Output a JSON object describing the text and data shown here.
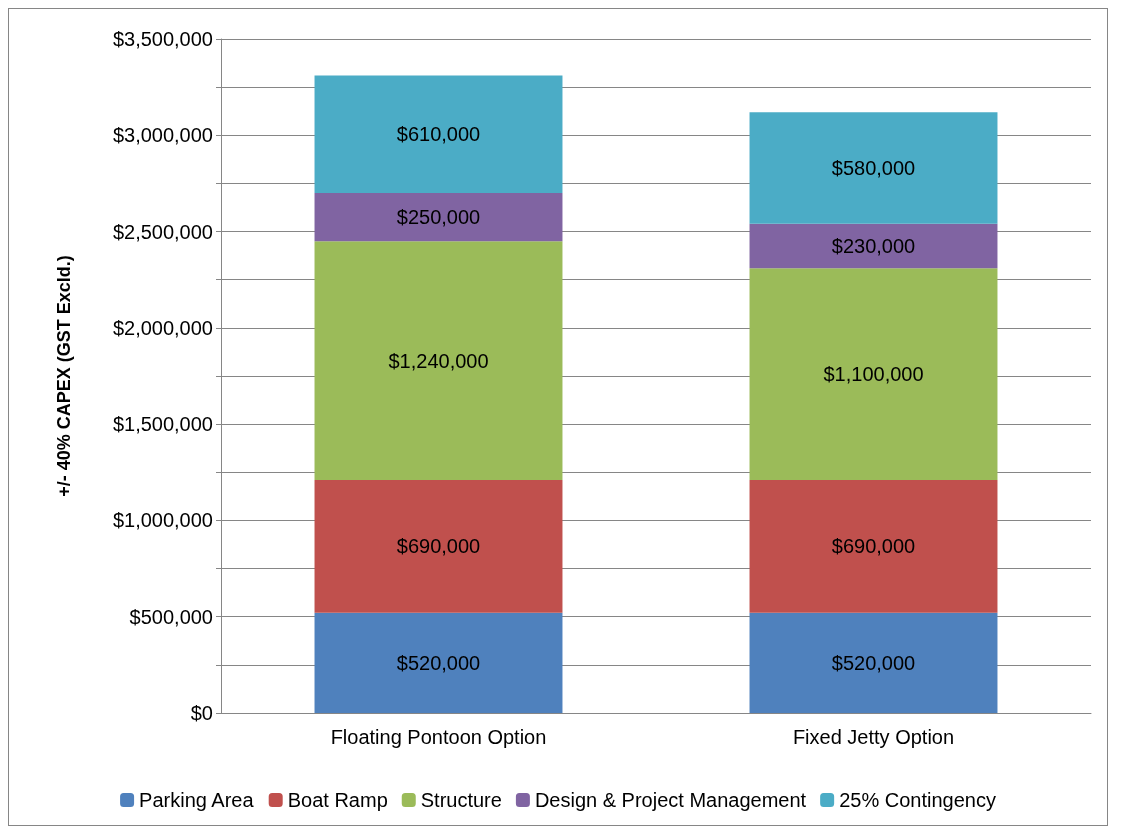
{
  "chart_data": {
    "type": "bar",
    "stacked": true,
    "ylabel": "+/- 40% CAPEX (GST Excld.)",
    "categories": [
      "Floating Pontoon Option",
      "Fixed Jetty Option"
    ],
    "series": [
      {
        "name": "Parking Area",
        "color": "#4f81bd",
        "values": [
          520000,
          520000
        ],
        "value_labels": [
          "$520,000",
          "$520,000"
        ]
      },
      {
        "name": "Boat Ramp",
        "color": "#c0504d",
        "values": [
          690000,
          690000
        ],
        "value_labels": [
          "$690,000",
          "$690,000"
        ]
      },
      {
        "name": "Structure",
        "color": "#9bbb59",
        "values": [
          1240000,
          1100000
        ],
        "value_labels": [
          "$1,240,000",
          "$1,100,000"
        ]
      },
      {
        "name": "Design & Project Management",
        "color": "#8064a2",
        "values": [
          250000,
          230000
        ],
        "value_labels": [
          "$250,000",
          "$230,000"
        ]
      },
      {
        "name": "25% Contingency",
        "color": "#4bacc6",
        "values": [
          610000,
          580000
        ],
        "value_labels": [
          "$610,000",
          "$580,000"
        ]
      }
    ],
    "ylim": [
      0,
      3500000
    ],
    "yticks": [
      {
        "value": 0,
        "label": "$0"
      },
      {
        "value": 250000,
        "label": null
      },
      {
        "value": 500000,
        "label": "$500,000"
      },
      {
        "value": 750000,
        "label": null
      },
      {
        "value": 1000000,
        "label": "$1,000,000"
      },
      {
        "value": 1250000,
        "label": null
      },
      {
        "value": 1500000,
        "label": "$1,500,000"
      },
      {
        "value": 1750000,
        "label": null
      },
      {
        "value": 2000000,
        "label": "$2,000,000"
      },
      {
        "value": 2250000,
        "label": null
      },
      {
        "value": 2500000,
        "label": "$2,500,000"
      },
      {
        "value": 2750000,
        "label": null
      },
      {
        "value": 3000000,
        "label": "$3,000,000"
      },
      {
        "value": 3250000,
        "label": null
      },
      {
        "value": 3500000,
        "label": "$3,500,000"
      }
    ],
    "grid": "y",
    "legend": "bottom"
  }
}
